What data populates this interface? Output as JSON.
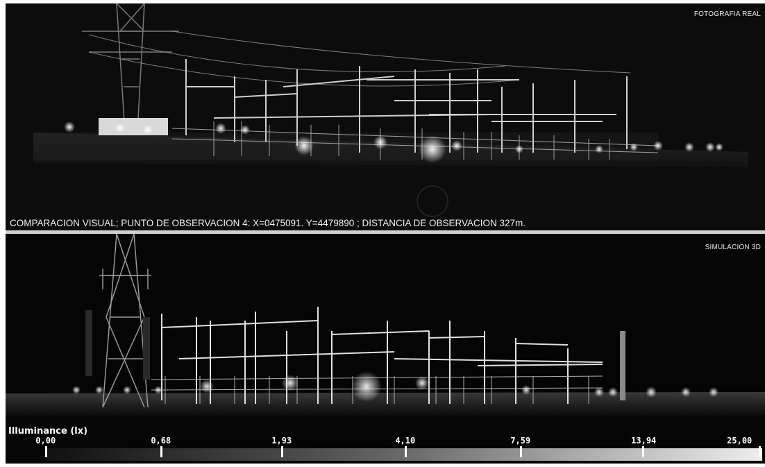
{
  "top_panel": {
    "corner_label": "FOTOGRAFIA REAL",
    "caption": "COMPARACION VISUAL; PUNTO DE OBSERVACION 4: X=0475091. Y=4479890 ; DISTANCIA DE OBSERVACION 327m."
  },
  "bottom_panel": {
    "corner_label": "SIMULACION 3D"
  },
  "legend": {
    "title": "Illuminance (lx)",
    "ticks": [
      "0,00",
      "0,68",
      "1,93",
      "4,10",
      "7,59",
      "13,94",
      "25,00"
    ]
  },
  "colors": {
    "background": "#0d0d0d",
    "text": "#f2f2f2",
    "divider": "#cfcfcf"
  }
}
